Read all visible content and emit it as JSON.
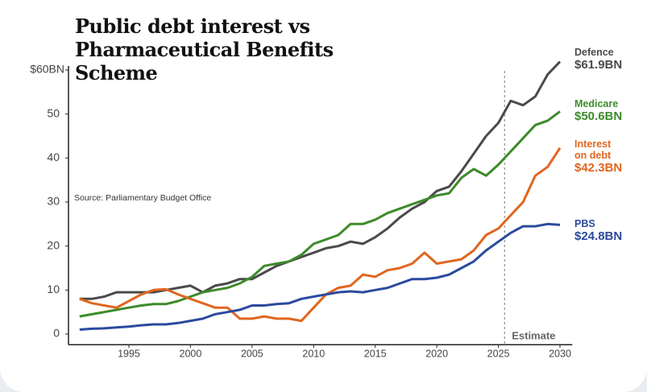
{
  "chart_data": {
    "type": "line",
    "title": "Public debt interest vs Pharmaceutical Benefits Scheme",
    "source": "Source: Parliamentary Budget Office",
    "annotation": "Estimate",
    "estimate_start": 2025.5,
    "x": [
      1991,
      1992,
      1993,
      1994,
      1995,
      1996,
      1997,
      1998,
      1999,
      2000,
      2001,
      2002,
      2003,
      2004,
      2005,
      2006,
      2007,
      2008,
      2009,
      2010,
      2011,
      2012,
      2013,
      2014,
      2015,
      2016,
      2017,
      2018,
      2019,
      2020,
      2021,
      2022,
      2023,
      2024,
      2025,
      2026,
      2027,
      2028,
      2029,
      2030
    ],
    "series": [
      {
        "name": "Defence",
        "color": "#4a4a4a",
        "values": [
          8,
          8,
          8.5,
          9.5,
          9.5,
          9.5,
          9.5,
          10,
          10.5,
          11,
          9.5,
          11,
          11.5,
          12.5,
          12.5,
          14,
          15.5,
          16.5,
          17.5,
          18.5,
          19.5,
          20,
          21,
          20.5,
          22,
          24,
          26.5,
          28.5,
          30,
          32.5,
          33.5,
          37,
          41,
          45,
          48,
          53,
          52,
          54,
          59,
          61.9
        ],
        "value_labels": [
          null,
          null,
          null,
          null,
          null,
          null,
          null,
          null,
          null,
          null,
          null,
          null,
          null,
          null,
          null,
          null,
          null,
          null,
          null,
          null,
          null,
          null,
          null,
          null,
          null,
          null,
          null,
          null,
          null,
          null,
          null,
          null,
          null,
          null,
          null,
          null,
          null,
          null,
          null,
          "$61.9BN"
        ]
      },
      {
        "name": "Medicare",
        "color": "#3d8b2a",
        "values": [
          4,
          4.5,
          5,
          5.5,
          6,
          6.5,
          6.8,
          6.8,
          7.5,
          8.5,
          9.5,
          10,
          10.5,
          11.5,
          13,
          15.5,
          16,
          16.5,
          18,
          20.5,
          21.5,
          22.5,
          25,
          25,
          26,
          27.5,
          28.5,
          29.5,
          30.5,
          31.5,
          32,
          35.5,
          37.5,
          36,
          38.5,
          41.5,
          44.5,
          47.5,
          48.5,
          50.6
        ],
        "value_labels": [
          null,
          null,
          null,
          null,
          null,
          null,
          null,
          null,
          null,
          null,
          null,
          null,
          null,
          null,
          null,
          null,
          null,
          null,
          null,
          null,
          null,
          null,
          null,
          null,
          null,
          null,
          null,
          null,
          null,
          null,
          null,
          null,
          null,
          null,
          null,
          null,
          null,
          null,
          null,
          "$50.6BN"
        ]
      },
      {
        "name": "Interest on debt",
        "color": "#e0661f",
        "values": [
          8,
          7,
          6.5,
          6,
          7.5,
          9,
          10,
          10.2,
          9,
          8,
          7,
          6,
          6,
          3.5,
          3.5,
          4,
          3.5,
          3.5,
          3,
          6,
          9,
          10.5,
          11,
          13.5,
          13,
          14.5,
          15,
          16,
          18.5,
          16,
          16.5,
          17,
          19,
          22.5,
          24,
          27,
          30,
          36,
          38,
          42.3
        ],
        "value_labels": [
          null,
          null,
          null,
          null,
          null,
          null,
          null,
          null,
          null,
          null,
          null,
          null,
          null,
          null,
          null,
          null,
          null,
          null,
          null,
          null,
          null,
          null,
          null,
          null,
          null,
          null,
          null,
          null,
          null,
          null,
          null,
          null,
          null,
          null,
          null,
          null,
          null,
          null,
          null,
          "$42.3BN"
        ]
      },
      {
        "name": "PBS",
        "color": "#2b4a9e",
        "values": [
          1,
          1.2,
          1.3,
          1.5,
          1.7,
          2,
          2.2,
          2.2,
          2.5,
          3,
          3.5,
          4.5,
          5,
          5.5,
          6.5,
          6.5,
          6.8,
          7,
          8,
          8.5,
          9,
          9.5,
          9.7,
          9.5,
          10,
          10.5,
          11.5,
          12.5,
          12.5,
          12.8,
          13.5,
          15,
          16.5,
          19,
          21,
          23,
          24.5,
          24.5,
          25,
          24.8
        ],
        "value_labels": [
          null,
          null,
          null,
          null,
          null,
          null,
          null,
          null,
          null,
          null,
          null,
          null,
          null,
          null,
          null,
          null,
          null,
          null,
          null,
          null,
          null,
          null,
          null,
          null,
          null,
          null,
          null,
          null,
          null,
          null,
          null,
          null,
          null,
          null,
          null,
          null,
          null,
          null,
          null,
          "$24.8BN"
        ]
      }
    ],
    "xlim": [
      1990.5,
      2031
    ],
    "xticks": [
      1995,
      2000,
      2005,
      2010,
      2015,
      2020,
      2025,
      2030
    ],
    "ylim": [
      -1.5,
      63
    ],
    "yticks": [
      {
        "value": 60,
        "label": "$60BN"
      },
      50,
      40,
      30,
      20,
      10,
      0
    ],
    "grid": false
  }
}
